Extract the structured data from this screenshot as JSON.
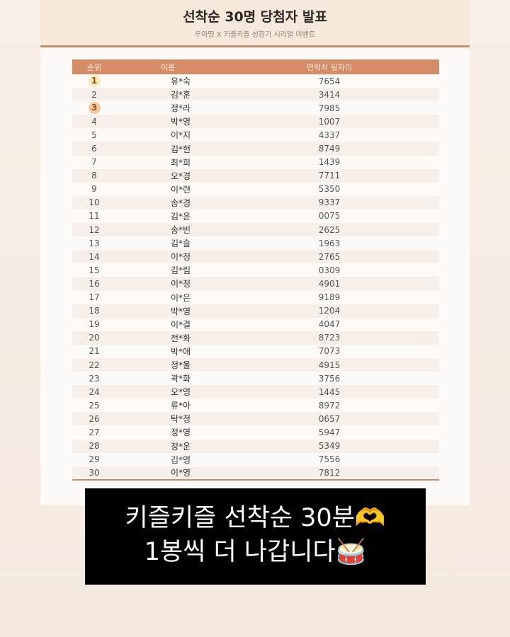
{
  "header": {
    "title": "선착순 30명 당첨자 발표",
    "subtitle": "우아띵 X 키즐키즐 성장기 시리얼 이벤트"
  },
  "table": {
    "columns": [
      "순위",
      "이름",
      "연락처 뒷자리"
    ],
    "rows": [
      [
        "1",
        "유*숙",
        "7654"
      ],
      [
        "2",
        "김*훈",
        "3414"
      ],
      [
        "3",
        "정*라",
        "7985"
      ],
      [
        "4",
        "박*영",
        "1007"
      ],
      [
        "5",
        "이*지",
        "4337"
      ],
      [
        "6",
        "김*현",
        "8749"
      ],
      [
        "7",
        "최*희",
        "1439"
      ],
      [
        "8",
        "오*경",
        "7711"
      ],
      [
        "9",
        "이*련",
        "5350"
      ],
      [
        "10",
        "송*경",
        "9337"
      ],
      [
        "11",
        "김*윤",
        "0075"
      ],
      [
        "12",
        "송*빈",
        "2625"
      ],
      [
        "13",
        "김*슬",
        "1963"
      ],
      [
        "14",
        "이*정",
        "2765"
      ],
      [
        "15",
        "김*림",
        "0309"
      ],
      [
        "16",
        "이*정",
        "4901"
      ],
      [
        "17",
        "이*은",
        "9189"
      ],
      [
        "18",
        "박*영",
        "1204"
      ],
      [
        "19",
        "이*결",
        "4047"
      ],
      [
        "20",
        "전*화",
        "8723"
      ],
      [
        "21",
        "박*애",
        "7073"
      ],
      [
        "22",
        "정*울",
        "4915"
      ],
      [
        "23",
        "곽*화",
        "3756"
      ],
      [
        "24",
        "오*영",
        "1445"
      ],
      [
        "25",
        "류*아",
        "8972"
      ],
      [
        "26",
        "탁*정",
        "0657"
      ],
      [
        "27",
        "정*영",
        "5947"
      ],
      [
        "28",
        "정*운",
        "5349"
      ],
      [
        "29",
        "김*영",
        "7556"
      ],
      [
        "30",
        "이*영",
        "7812"
      ]
    ]
  },
  "overlay": {
    "line1": "키즐키즐 선착순 30분🫶",
    "line2": "1봉씩 더 나갑니다🥁"
  }
}
